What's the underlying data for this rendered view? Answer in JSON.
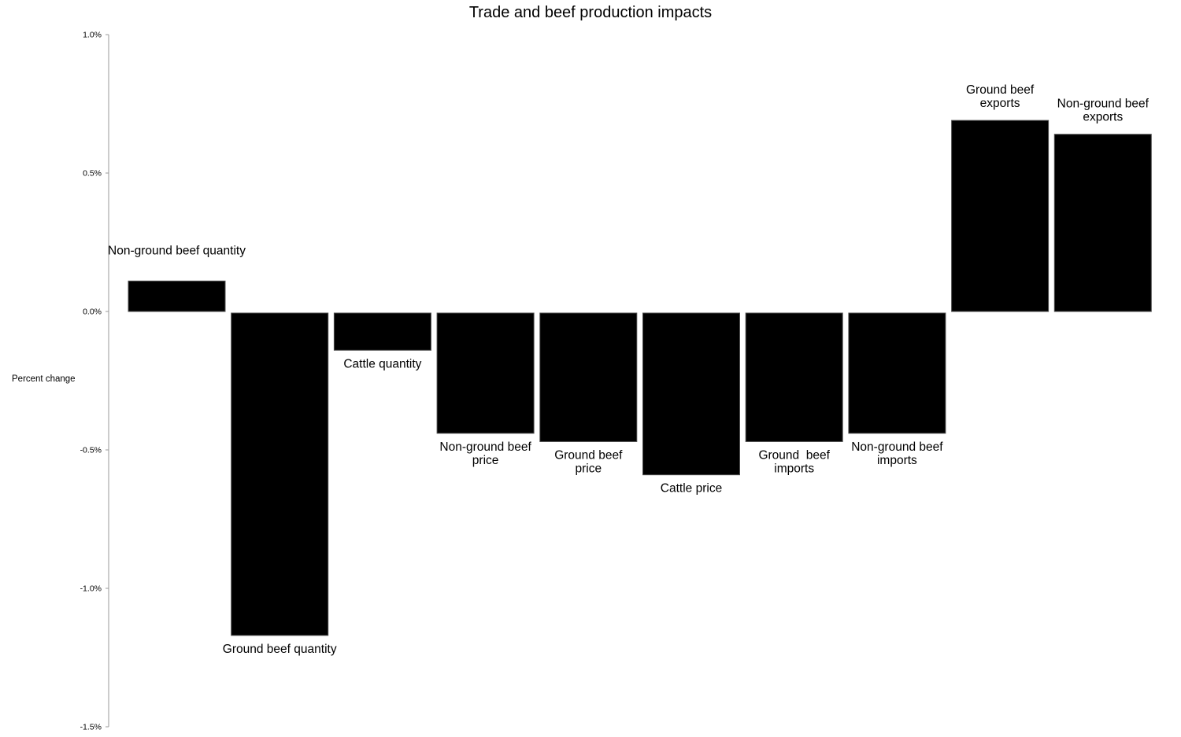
{
  "chart_data": {
    "type": "bar",
    "title": "Trade and beef production impacts",
    "xlabel": "",
    "ylabel": "Percent change",
    "ylim": [
      -1.5,
      1.0
    ],
    "yticks": [
      "1.0%",
      "0.5%",
      "0.0%",
      "-0.5%",
      "-1.0%",
      "-1.5%"
    ],
    "ytick_values": [
      1.0,
      0.5,
      0.0,
      -0.5,
      -1.0,
      -1.5
    ],
    "grid": false,
    "legend": "none",
    "bar_color": "#000000",
    "categories": [
      "Non-ground beef quantity",
      "Ground beef quantity",
      "Cattle quantity",
      "Non-ground beef price",
      "Ground beef price",
      "Cattle price",
      "Ground  beef imports",
      "Non-ground beef imports",
      "Ground beef exports",
      "Non-ground beef exports"
    ],
    "label_lines": [
      [
        "Non-ground beef quantity"
      ],
      [
        "Ground beef quantity"
      ],
      [
        "Cattle quantity"
      ],
      [
        "Non-ground beef",
        "price"
      ],
      [
        "Ground beef",
        "price"
      ],
      [
        "Cattle price"
      ],
      [
        "Ground  beef",
        "imports"
      ],
      [
        "Non-ground beef",
        "imports"
      ],
      [
        "Ground beef",
        "exports"
      ],
      [
        "Non-ground beef",
        "exports"
      ]
    ],
    "values": [
      0.11,
      -1.17,
      -0.14,
      -0.44,
      -0.47,
      -0.59,
      -0.47,
      -0.44,
      0.69,
      0.64
    ]
  }
}
